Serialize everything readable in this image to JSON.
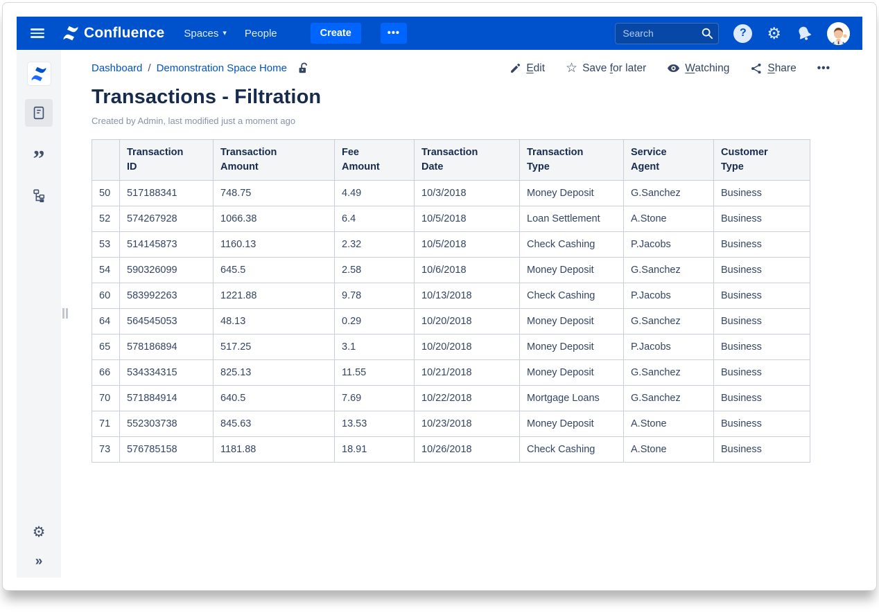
{
  "topbar": {
    "brand": "Confluence",
    "spaces_label": "Spaces",
    "people_label": "People",
    "create_label": "Create",
    "search_placeholder": "Search"
  },
  "breadcrumb": {
    "items": [
      "Dashboard",
      "Demonstration Space Home"
    ],
    "separator": "/"
  },
  "actions": {
    "edit": {
      "pre": "",
      "key": "E",
      "post": "dit"
    },
    "save_for_later": {
      "pre": "Save ",
      "key": "f",
      "post": "or later"
    },
    "watching": {
      "pre": "",
      "key": "W",
      "post": "atching"
    },
    "share": {
      "pre": "",
      "key": "S",
      "post": "hare"
    }
  },
  "page": {
    "title": "Transactions - Filtration",
    "byline": "Created by Admin, last modified just a moment ago"
  },
  "table": {
    "columns": [
      "",
      "Transaction\nID",
      "Transaction\nAmount",
      "Fee\nAmount",
      "Transaction\nDate",
      "Transaction\nType",
      "Service\nAgent",
      "Customer\nType"
    ],
    "rows": [
      [
        "50",
        "517188341",
        "748.75",
        "4.49",
        "10/3/2018",
        "Money Deposit",
        "G.Sanchez",
        "Business"
      ],
      [
        "52",
        "574267928",
        "1066.38",
        "6.4",
        "10/5/2018",
        "Loan Settlement",
        "A.Stone",
        "Business"
      ],
      [
        "53",
        "514145873",
        "1160.13",
        "2.32",
        "10/5/2018",
        "Check Cashing",
        "P.Jacobs",
        "Business"
      ],
      [
        "54",
        "590326099",
        "645.5",
        "2.58",
        "10/6/2018",
        "Money Deposit",
        "G.Sanchez",
        "Business"
      ],
      [
        "60",
        "583992263",
        "1221.88",
        "9.78",
        "10/13/2018",
        "Check Cashing",
        "P.Jacobs",
        "Business"
      ],
      [
        "64",
        "564545053",
        "48.13",
        "0.29",
        "10/20/2018",
        "Money Deposit",
        "G.Sanchez",
        "Business"
      ],
      [
        "65",
        "578186894",
        "517.25",
        "3.1",
        "10/20/2018",
        "Money Deposit",
        "P.Jacobs",
        "Business"
      ],
      [
        "66",
        "534334315",
        "825.13",
        "11.55",
        "10/21/2018",
        "Money Deposit",
        "G.Sanchez",
        "Business"
      ],
      [
        "70",
        "571884914",
        "640.5",
        "7.69",
        "10/22/2018",
        "Mortgage Loans",
        "G.Sanchez",
        "Business"
      ],
      [
        "71",
        "552303738",
        "845.63",
        "13.53",
        "10/23/2018",
        "Money Deposit",
        "A.Stone",
        "Business"
      ],
      [
        "73",
        "576785158",
        "1181.88",
        "18.91",
        "10/26/2018",
        "Check Cashing",
        "A.Stone",
        "Business"
      ]
    ]
  },
  "icons": {
    "chevron_down": "▾",
    "more_dots": "•••",
    "help": "?",
    "gear": "⚙",
    "star": "☆",
    "quote": "”",
    "expand": "»"
  },
  "colors": {
    "navbar": "#0052CC",
    "navbar-dark": "#0747A6",
    "create": "#0065FF",
    "sidebar": "#F4F5F7",
    "link": "#0052CC",
    "title": "#172B4D",
    "text": "#344563",
    "muted": "#8993A4",
    "border": "#C9CFD9",
    "header-bg": "#F4F5F7",
    "icon": "#42526E"
  }
}
